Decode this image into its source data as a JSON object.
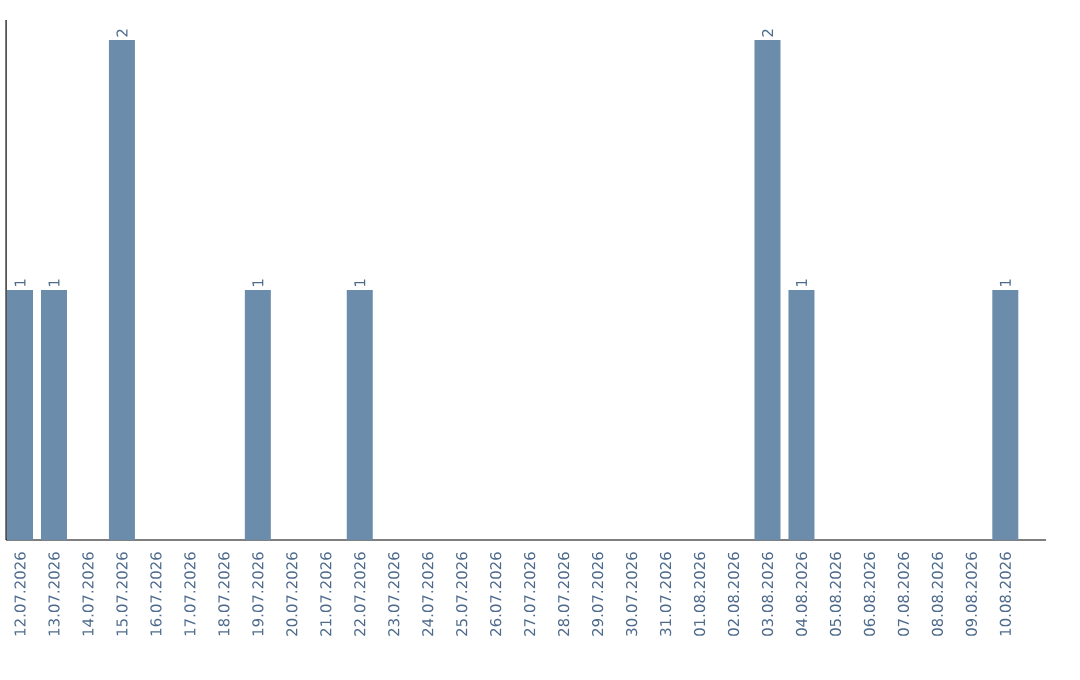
{
  "chart_data": {
    "type": "bar",
    "categories": [
      "12.07.2026",
      "13.07.2026",
      "14.07.2026",
      "15.07.2026",
      "16.07.2026",
      "17.07.2026",
      "18.07.2026",
      "19.07.2026",
      "20.07.2026",
      "21.07.2026",
      "22.07.2026",
      "23.07.2026",
      "24.07.2026",
      "25.07.2026",
      "26.07.2026",
      "27.07.2026",
      "28.07.2026",
      "29.07.2026",
      "30.07.2026",
      "31.07.2026",
      "01.08.2026",
      "02.08.2026",
      "03.08.2026",
      "04.08.2026",
      "05.08.2026",
      "06.08.2026",
      "07.08.2026",
      "08.08.2026",
      "09.08.2026",
      "10.08.2026"
    ],
    "values": [
      1,
      1,
      0,
      2,
      0,
      0,
      0,
      1,
      0,
      0,
      1,
      0,
      0,
      0,
      0,
      0,
      0,
      0,
      0,
      0,
      0,
      0,
      2,
      1,
      0,
      0,
      0,
      0,
      0,
      1
    ],
    "value_labels": [
      "1",
      "1",
      null,
      "2",
      null,
      null,
      null,
      "1",
      null,
      null,
      "1",
      null,
      null,
      null,
      null,
      null,
      null,
      null,
      null,
      null,
      null,
      null,
      "2",
      "1",
      null,
      null,
      null,
      null,
      null,
      "1"
    ],
    "color": "#6b8cab"
  }
}
